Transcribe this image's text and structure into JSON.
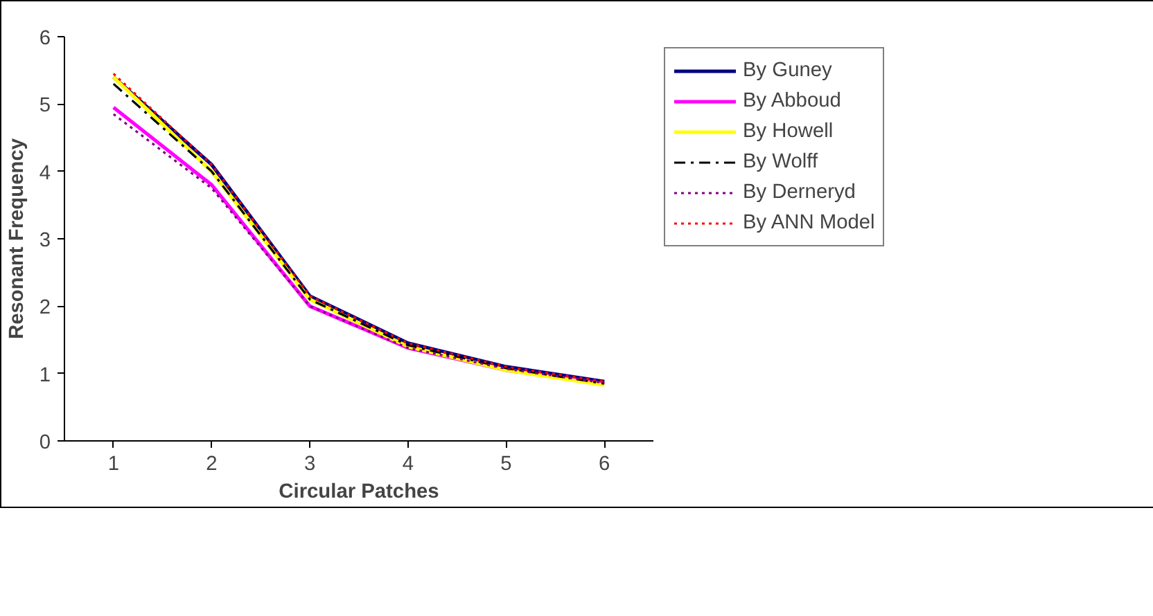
{
  "chart_data": {
    "type": "line",
    "xlabel": "Circular Patches",
    "ylabel": "Resonant Frequency",
    "categories": [
      "1",
      "2",
      "3",
      "4",
      "5",
      "6"
    ],
    "ylim": [
      0,
      6
    ],
    "yticks": [
      0,
      1,
      2,
      3,
      4,
      5,
      6
    ],
    "grid": false,
    "legend": "right",
    "series": [
      {
        "name": "By Guney",
        "color": "#000080",
        "line_style": "solid",
        "values": [
          5.4,
          4.1,
          2.15,
          1.45,
          1.1,
          0.88
        ]
      },
      {
        "name": "By Abboud",
        "color": "#ff00ff",
        "line_style": "solid",
        "values": [
          4.95,
          3.8,
          2.0,
          1.38,
          1.05,
          0.85
        ]
      },
      {
        "name": "By Howell",
        "color": "#ffff00",
        "line_style": "solid",
        "values": [
          5.4,
          4.0,
          2.1,
          1.4,
          1.05,
          0.83
        ]
      },
      {
        "name": "By Wolff",
        "color": "#000000",
        "line_style": "dashdot",
        "values": [
          5.3,
          4.0,
          2.1,
          1.42,
          1.08,
          0.85
        ]
      },
      {
        "name": "By Derneryd",
        "color": "#800080",
        "line_style": "dotted",
        "values": [
          4.85,
          3.75,
          2.0,
          1.38,
          1.07,
          0.86
        ]
      },
      {
        "name": "By ANN Model",
        "color": "#ff0000",
        "line_style": "dotted",
        "values": [
          5.45,
          4.1,
          2.15,
          1.45,
          1.1,
          0.88
        ]
      }
    ]
  }
}
